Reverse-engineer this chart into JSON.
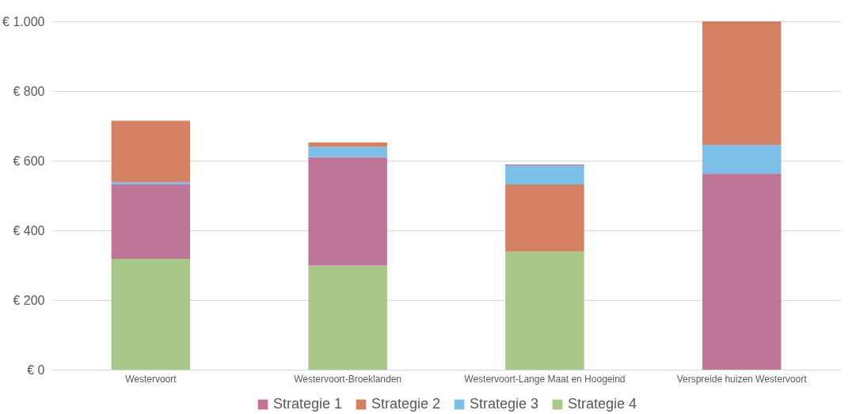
{
  "chart_data": {
    "type": "bar",
    "stacked": true,
    "categories": [
      "Westervoort",
      "Westervoort-Broeklanden",
      "Westervoort-Lange Maat en Hoogeind",
      "Verspreide huizen Westervoort"
    ],
    "series": [
      {
        "name": "Strategie 4",
        "color": "#a9c786",
        "values": [
          318,
          299,
          339,
          null
        ]
      },
      {
        "name": "Strategie 1",
        "color": "#bd7698",
        "values": [
          214,
          311,
          null,
          563
        ]
      },
      {
        "color": "#d48163",
        "values": [
          null,
          null,
          193,
          null
        ]
      },
      {
        "name": "Strategie 3",
        "color": "#7cc0ea",
        "values": [
          6,
          30,
          54,
          82
        ]
      },
      {
        "name": "Strategie 2",
        "color": "#d48163",
        "values": [
          177,
          12,
          null,
          355
        ]
      },
      {
        "color": "#bd7698",
        "values": [
          null,
          null,
          3,
          null
        ]
      }
    ],
    "ylim": [
      0,
      1000
    ],
    "yticks": [
      {
        "value": 0,
        "label": "€ 0"
      },
      {
        "value": 200,
        "label": "€ 200"
      },
      {
        "value": 400,
        "label": "€ 400"
      },
      {
        "value": 600,
        "label": "€ 600"
      },
      {
        "value": 800,
        "label": "€ 800"
      },
      {
        "value": 1000,
        "label": "€ 1.000"
      }
    ],
    "grid": "y",
    "legend": "bottom"
  }
}
